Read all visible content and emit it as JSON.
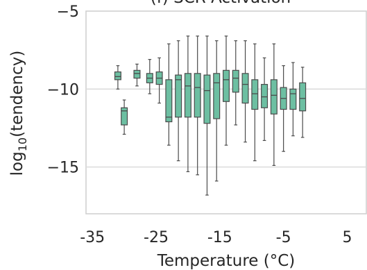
{
  "chart_data": {
    "type": "box",
    "title": "(f) SCR Activation",
    "xlabel": "Temperature (°C)",
    "ylabel_main": "log",
    "ylabel_sub": "10",
    "ylabel_rest": "(tendency)",
    "x_ticks": [
      -35,
      -25,
      -15,
      -5,
      5
    ],
    "x_tick_labels": [
      "-35",
      "-25",
      "-15",
      "-5",
      "5"
    ],
    "y_ticks": [
      -5,
      -10,
      -15
    ],
    "y_tick_labels": [
      "−5",
      "−10",
      "−15"
    ],
    "xlim": [
      -36,
      8
    ],
    "ylim": [
      -18,
      -5
    ],
    "grid": true,
    "colors": {
      "box_fill": "#6dbfa2",
      "box_edge": "#4a4a4a"
    },
    "boxes": [
      {
        "temperature": -31,
        "whisker_low": -10.0,
        "q1": -9.4,
        "median": -9.2,
        "q3": -8.9,
        "whisker_high": -8.5
      },
      {
        "temperature": -30,
        "whisker_low": -12.9,
        "q1": -12.3,
        "median": -11.4,
        "q3": -11.2,
        "whisker_high": -10.7
      },
      {
        "temperature": -28,
        "whisker_low": -9.8,
        "q1": -9.3,
        "median": -9.0,
        "q3": -8.8,
        "whisker_high": -8.4
      },
      {
        "temperature": -26,
        "whisker_low": -10.3,
        "q1": -9.6,
        "median": -9.3,
        "q3": -9.0,
        "whisker_high": -8.1
      },
      {
        "temperature": -24.5,
        "whisker_low": -10.9,
        "q1": -9.7,
        "median": -9.3,
        "q3": -8.9,
        "whisker_high": -8.0
      },
      {
        "temperature": -23,
        "whisker_low": -13.6,
        "q1": -12.1,
        "median": -11.8,
        "q3": -9.4,
        "whisker_high": -7.1
      },
      {
        "temperature": -21.5,
        "whisker_low": -14.6,
        "q1": -11.8,
        "median": -9.4,
        "q3": -9.1,
        "whisker_high": -6.9
      },
      {
        "temperature": -20,
        "whisker_low": -15.3,
        "q1": -11.8,
        "median": -9.8,
        "q3": -9.0,
        "whisker_high": -6.6
      },
      {
        "temperature": -18.5,
        "whisker_low": -15.5,
        "q1": -11.8,
        "median": -9.9,
        "q3": -9.0,
        "whisker_high": -6.6
      },
      {
        "temperature": -17,
        "whisker_low": -16.8,
        "q1": -12.2,
        "median": -10.1,
        "q3": -9.1,
        "whisker_high": -6.6
      },
      {
        "temperature": -15.5,
        "whisker_low": -15.9,
        "q1": -11.9,
        "median": -9.6,
        "q3": -9.0,
        "whisker_high": -6.9
      },
      {
        "temperature": -14,
        "whisker_low": -13.6,
        "q1": -10.8,
        "median": -9.4,
        "q3": -8.8,
        "whisker_high": -6.6
      },
      {
        "temperature": -12.5,
        "whisker_low": -12.3,
        "q1": -10.2,
        "median": -9.3,
        "q3": -8.8,
        "whisker_high": -6.9
      },
      {
        "temperature": -11,
        "whisker_low": -13.4,
        "q1": -10.9,
        "median": -9.7,
        "q3": -9.0,
        "whisker_high": -6.9
      },
      {
        "temperature": -9.5,
        "whisker_low": -14.6,
        "q1": -11.3,
        "median": -10.3,
        "q3": -9.4,
        "whisker_high": -7.1
      },
      {
        "temperature": -8,
        "whisker_low": -13.3,
        "q1": -11.2,
        "median": -10.5,
        "q3": -9.7,
        "whisker_high": -8.0
      },
      {
        "temperature": -6.5,
        "whisker_low": -14.9,
        "q1": -11.6,
        "median": -10.4,
        "q3": -9.4,
        "whisker_high": -7.1
      },
      {
        "temperature": -5,
        "whisker_low": -14.0,
        "q1": -11.3,
        "median": -10.6,
        "q3": -9.9,
        "whisker_high": -8.5
      },
      {
        "temperature": -3.5,
        "whisker_low": -13.0,
        "q1": -11.3,
        "median": -10.3,
        "q3": -10.0,
        "whisker_high": -8.3
      },
      {
        "temperature": -2,
        "whisker_low": -13.1,
        "q1": -11.4,
        "median": -10.6,
        "q3": -9.6,
        "whisker_high": -8.6
      }
    ]
  }
}
